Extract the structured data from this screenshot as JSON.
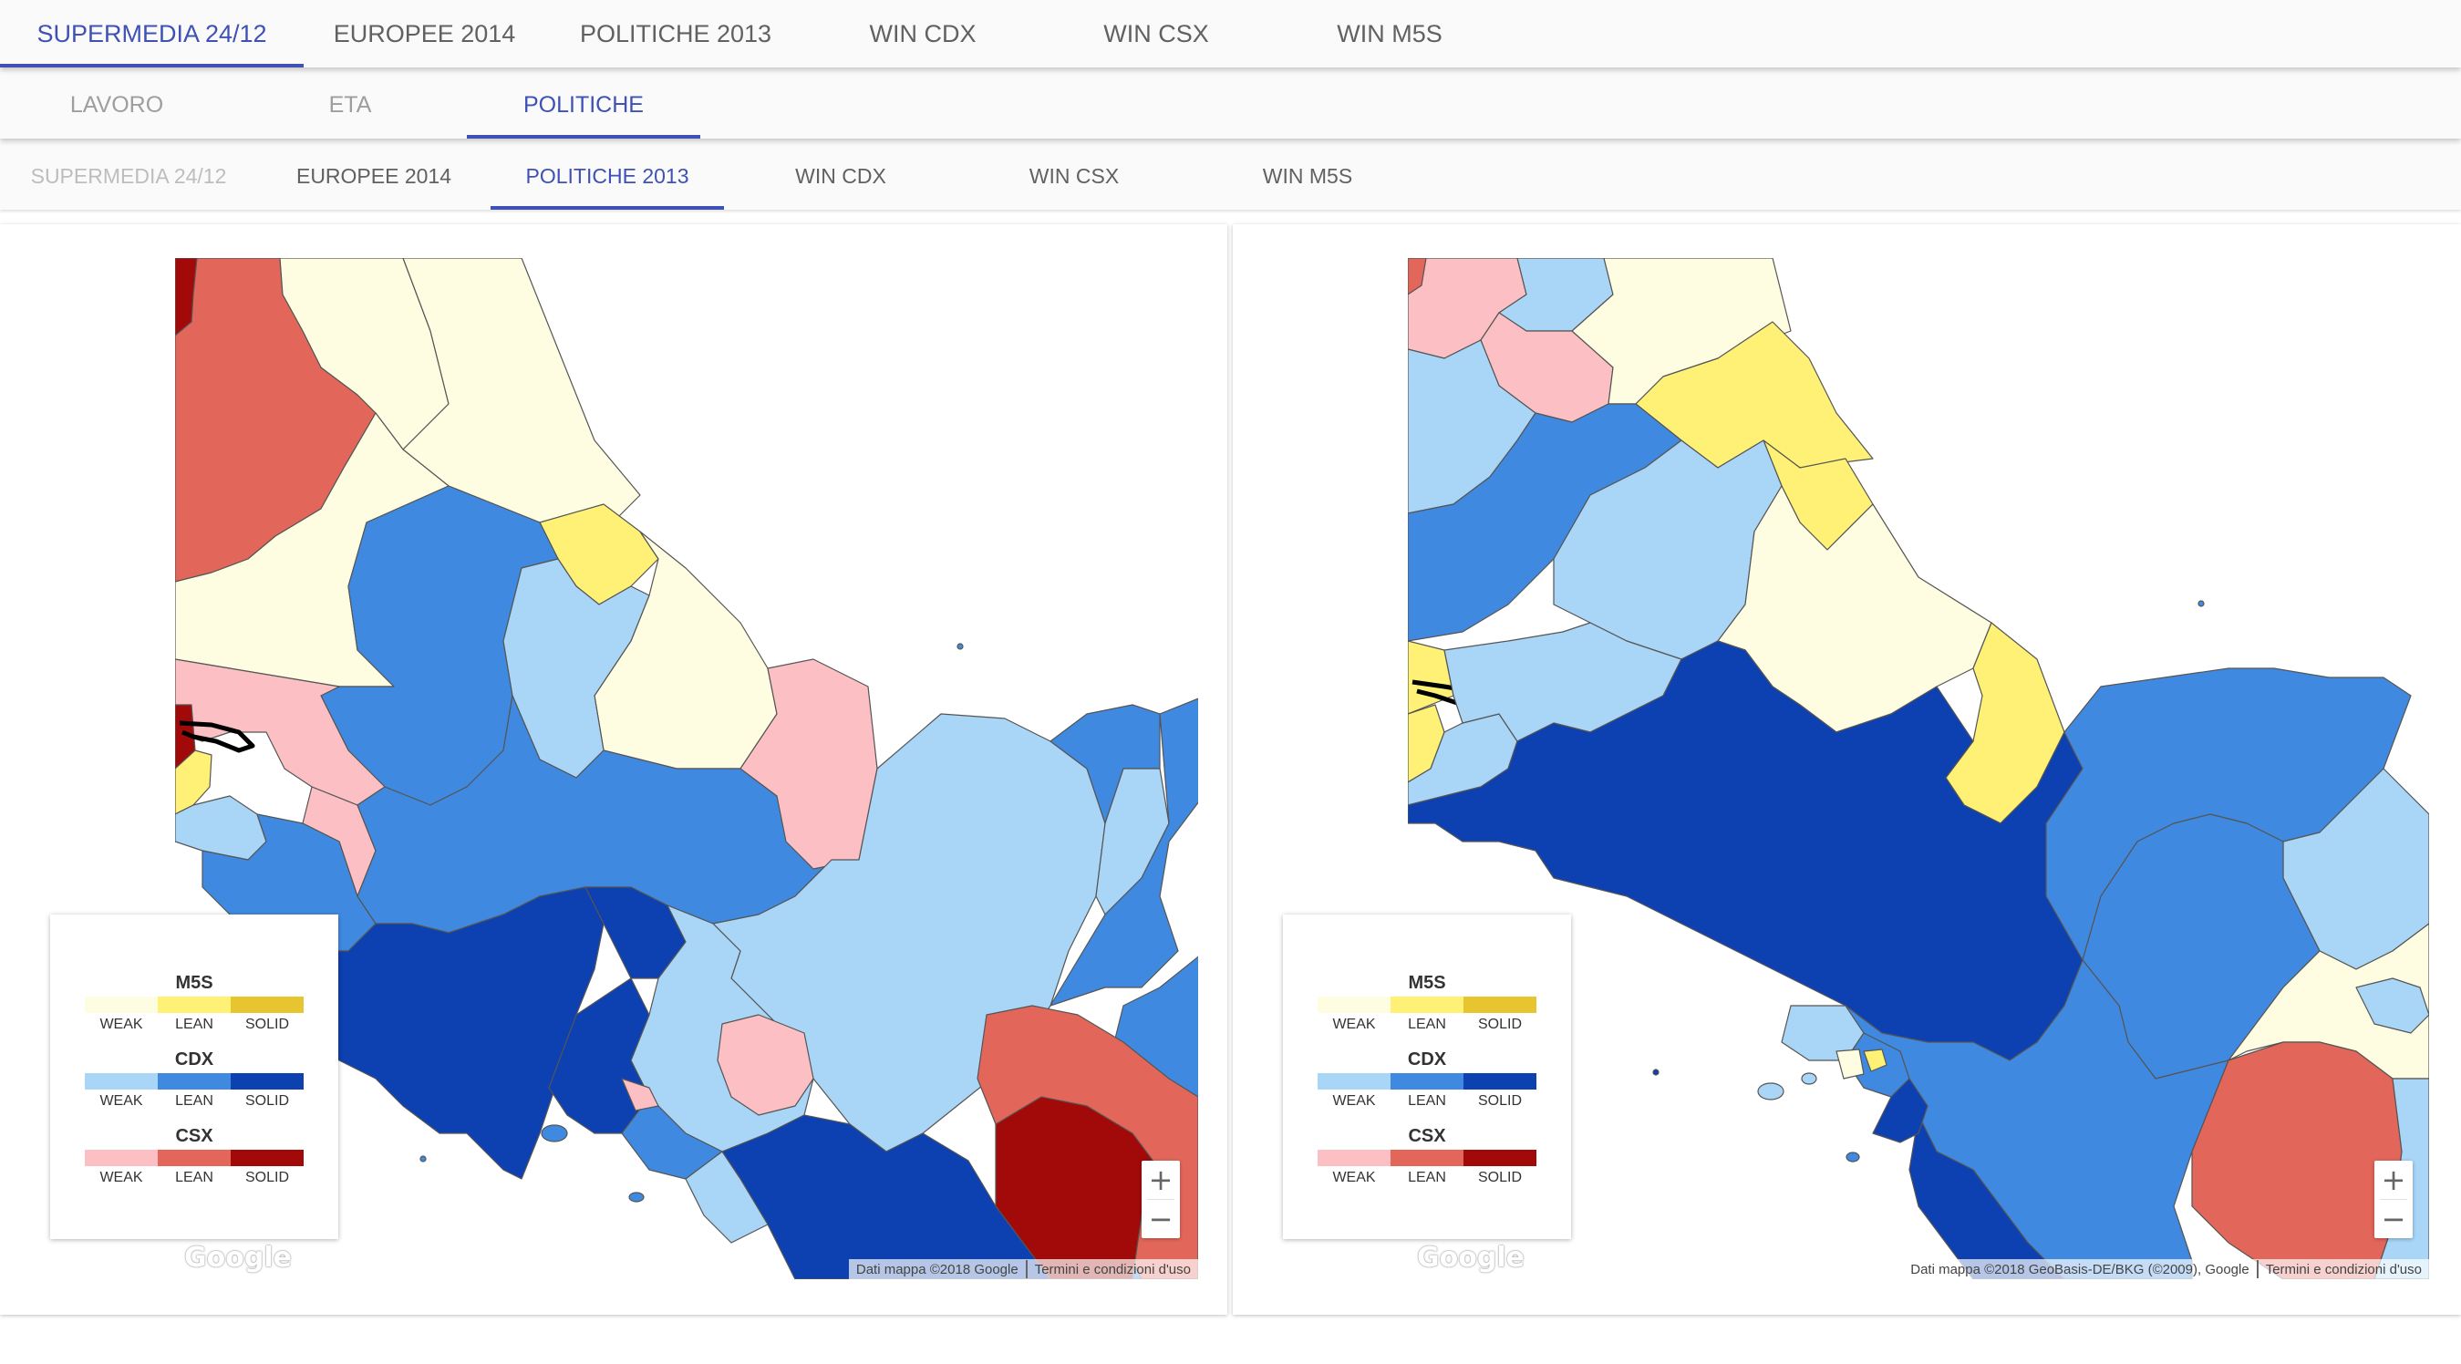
{
  "tabs_main": [
    {
      "label": "SUPERMEDIA 24/12",
      "active": true
    },
    {
      "label": "EUROPEE 2014",
      "active": false
    },
    {
      "label": "POLITICHE 2013",
      "active": false
    },
    {
      "label": "WIN CDX",
      "active": false
    },
    {
      "label": "WIN CSX",
      "active": false
    },
    {
      "label": "WIN M5S",
      "active": false
    }
  ],
  "tabs_category": [
    {
      "label": "LAVORO",
      "active": false
    },
    {
      "label": "ETA",
      "active": false
    },
    {
      "label": "POLITICHE",
      "active": true
    }
  ],
  "tabs_compare": [
    {
      "label": "SUPERMEDIA 24/12",
      "active": false,
      "disabled": true
    },
    {
      "label": "EUROPEE 2014",
      "active": false
    },
    {
      "label": "POLITICHE 2013",
      "active": true
    },
    {
      "label": "WIN CDX",
      "active": false
    },
    {
      "label": "WIN CSX",
      "active": false
    },
    {
      "label": "WIN M5S",
      "active": false
    }
  ],
  "legend": {
    "groups": [
      {
        "title": "M5S",
        "colors": [
          "#fffde1",
          "#fff176",
          "#e6c531"
        ],
        "labels": [
          "WEAK",
          "LEAN",
          "SOLID"
        ]
      },
      {
        "title": "CDX",
        "colors": [
          "#a9d5f7",
          "#3f8ae0",
          "#0d40b0"
        ],
        "labels": [
          "WEAK",
          "LEAN",
          "SOLID"
        ]
      },
      {
        "title": "CSX",
        "colors": [
          "#fcc0c4",
          "#e2675a",
          "#a20a0a"
        ],
        "labels": [
          "WEAK",
          "LEAN",
          "SOLID"
        ]
      }
    ]
  },
  "maps": {
    "left": {
      "footer_data": "Dati mappa ©2018 Google",
      "footer_terms": "Termini e condizioni d'uso"
    },
    "right": {
      "footer_data": "Dati mappa ©2018 GeoBasis-DE/BKG (©2009), Google",
      "footer_terms": "Termini e condizioni d'uso"
    },
    "logo": "Google",
    "zoom_in": "+",
    "zoom_out": "−"
  },
  "colors": {
    "accent": "#3f51b5",
    "sea": "#ffffff"
  }
}
